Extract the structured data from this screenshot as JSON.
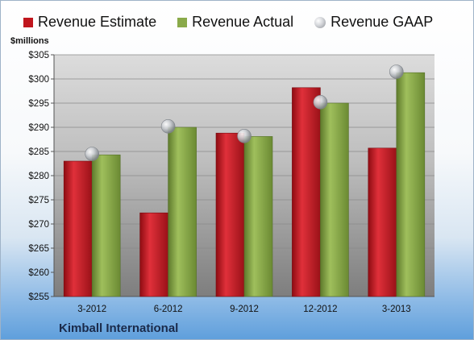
{
  "chart_data": {
    "type": "bar",
    "ylabel": "$millions",
    "ylim": [
      255,
      305
    ],
    "yticks": [
      "$305",
      "$300",
      "$295",
      "$290",
      "$285",
      "$280",
      "$275",
      "$270",
      "$265",
      "$260",
      "$255"
    ],
    "categories": [
      "3-2012",
      "6-2012",
      "9-2012",
      "12-2012",
      "3-2013"
    ],
    "series": [
      {
        "name": "Revenue Estimate",
        "type": "bar",
        "color": "#c0161d",
        "values": [
          283.0,
          272.3,
          288.8,
          298.2,
          285.7
        ]
      },
      {
        "name": "Revenue Actual",
        "type": "bar",
        "color": "#8aaa4a",
        "values": [
          284.3,
          290.0,
          288.1,
          295.0,
          301.3
        ]
      },
      {
        "name": "Revenue GAAP",
        "type": "scatter",
        "color": "#b9bcc1",
        "values": [
          284.5,
          290.2,
          288.2,
          295.2,
          301.5
        ]
      }
    ],
    "grid": true,
    "legend": "top"
  },
  "footer": {
    "company": "Kimball International"
  }
}
